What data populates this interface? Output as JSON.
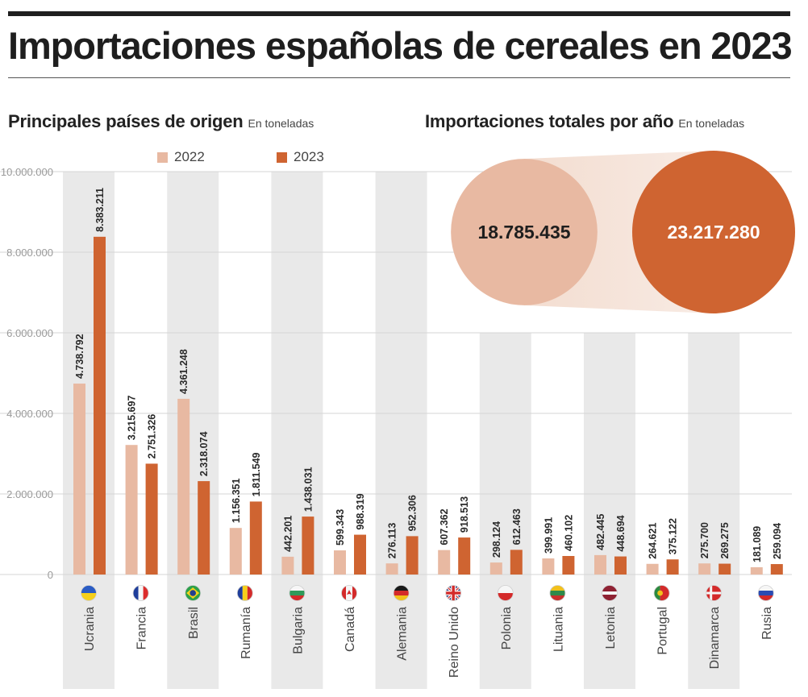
{
  "title": "Importaciones españolas de cereales en 2023",
  "left_section": {
    "title": "Principales países de origen",
    "unit": "En toneladas"
  },
  "right_section": {
    "title": "Importaciones totales por año",
    "unit": "En toneladas"
  },
  "colors": {
    "c2022": "#e8b9a2",
    "c2023": "#cf6431",
    "stripe": "#e9e9e9",
    "grid": "#d5d5d5"
  },
  "legend": [
    {
      "label": "2022",
      "color": "#e8b9a2"
    },
    {
      "label": "2023",
      "color": "#cf6431"
    }
  ],
  "totals": [
    {
      "year": "2022",
      "value": 18785435,
      "label": "18.785.435",
      "color": "#e8b9a2",
      "text_color": "#1e1e1e"
    },
    {
      "year": "2023",
      "value": 23217280,
      "label": "23.217.280",
      "color": "#cf6431",
      "text_color": "#ffffff"
    }
  ],
  "countries": [
    {
      "name": "Ucrania",
      "flag": "ukraine"
    },
    {
      "name": "Francia",
      "flag": "france"
    },
    {
      "name": "Brasil",
      "flag": "brazil"
    },
    {
      "name": "Rumanía",
      "flag": "romania"
    },
    {
      "name": "Bulgaria",
      "flag": "bulgaria"
    },
    {
      "name": "Canadá",
      "flag": "canada"
    },
    {
      "name": "Alemania",
      "flag": "germany"
    },
    {
      "name": "Reino Unido",
      "flag": "uk"
    },
    {
      "name": "Polonia",
      "flag": "poland"
    },
    {
      "name": "Lituania",
      "flag": "lithuania"
    },
    {
      "name": "Letonia",
      "flag": "latvia"
    },
    {
      "name": "Portugal",
      "flag": "portugal"
    },
    {
      "name": "Dinamarca",
      "flag": "denmark"
    },
    {
      "name": "Rusia",
      "flag": "russia"
    }
  ],
  "chart_data": {
    "type": "bar",
    "title": "Principales países de origen",
    "unit": "En toneladas",
    "categories": [
      "Ucrania",
      "Francia",
      "Brasil",
      "Rumanía",
      "Bulgaria",
      "Canadá",
      "Alemania",
      "Reino Unido",
      "Polonia",
      "Lituania",
      "Letonia",
      "Portugal",
      "Dinamarca",
      "Rusia"
    ],
    "series": [
      {
        "name": "2022",
        "values": [
          4738792,
          3215697,
          4361248,
          1156351,
          442201,
          599343,
          276113,
          607362,
          298124,
          399991,
          482445,
          264621,
          275700,
          181089
        ],
        "labels": [
          "4.738.792",
          "3.215.697",
          "4.361.248",
          "1.156.351",
          "442.201",
          "599.343",
          "276.113",
          "607.362",
          "298.124",
          "399.991",
          "482.445",
          "264.621",
          "275.700",
          "181.089"
        ]
      },
      {
        "name": "2023",
        "values": [
          8383211,
          2751326,
          2318074,
          1811549,
          1438031,
          988319,
          952306,
          918513,
          612463,
          460102,
          448694,
          375122,
          269275,
          259094
        ],
        "labels": [
          "8.383.211",
          "2.751.326",
          "2.318.074",
          "1.811.549",
          "1.438.031",
          "988.319",
          "952.306",
          "918.513",
          "612.463",
          "460.102",
          "448.694",
          "375.122",
          "269.275",
          "259.094"
        ]
      }
    ],
    "ylim": [
      0,
      10000000
    ],
    "yticks": [
      0,
      2000000,
      4000000,
      6000000,
      8000000,
      10000000
    ],
    "ytick_labels": [
      "0",
      "2.000.000",
      "4.000.000",
      "6.000.000",
      "8.000.000",
      "10.000.000"
    ],
    "grid": true,
    "legend_position": "top"
  }
}
